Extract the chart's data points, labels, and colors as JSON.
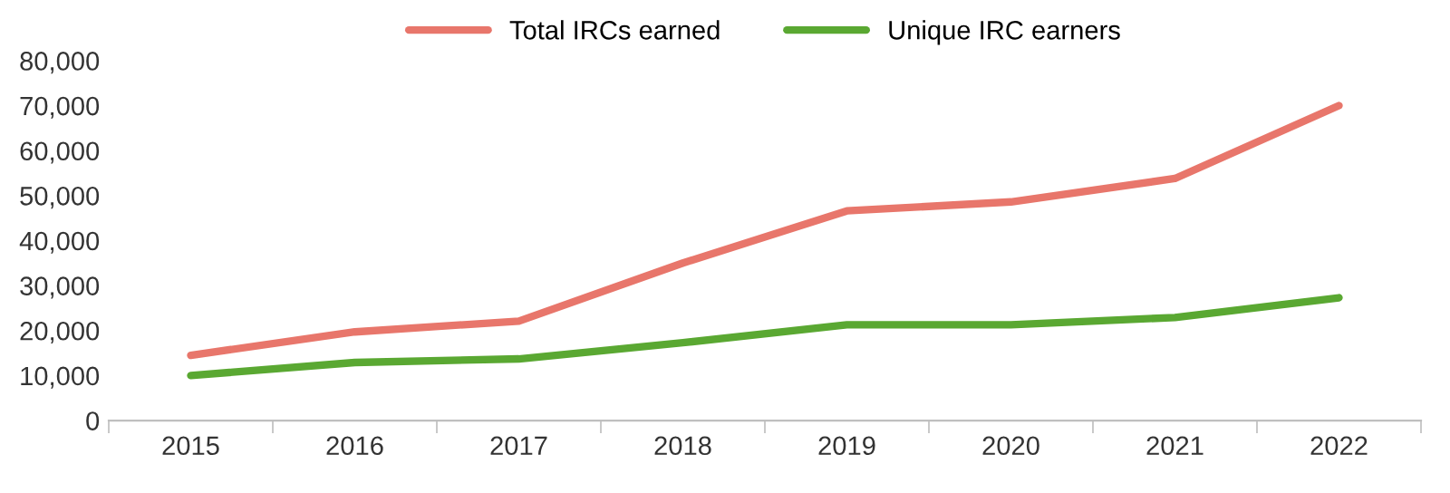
{
  "chart_data": {
    "type": "line",
    "categories": [
      "2015",
      "2016",
      "2017",
      "2018",
      "2019",
      "2020",
      "2021",
      "2022"
    ],
    "series": [
      {
        "name": "Total IRCs earned",
        "color": "#e8766b",
        "values": [
          14500,
          19700,
          22100,
          35000,
          46600,
          48600,
          53800,
          70000
        ]
      },
      {
        "name": "Unique IRC earners",
        "color": "#5aa832",
        "values": [
          10000,
          12900,
          13700,
          17300,
          21300,
          21300,
          22900,
          27300
        ]
      }
    ],
    "ylim": [
      0,
      80000
    ],
    "yticks": [
      {
        "value": 0,
        "label": "0"
      },
      {
        "value": 10000,
        "label": "10,000"
      },
      {
        "value": 20000,
        "label": "20,000"
      },
      {
        "value": 30000,
        "label": "30,000"
      },
      {
        "value": 40000,
        "label": "40,000"
      },
      {
        "value": 50000,
        "label": "50,000"
      },
      {
        "value": 60000,
        "label": "60,000"
      },
      {
        "value": 70000,
        "label": "70,000"
      },
      {
        "value": 80000,
        "label": "80,000"
      }
    ],
    "legend": "top",
    "grid": false,
    "line_style": "solid",
    "marker": "none"
  }
}
